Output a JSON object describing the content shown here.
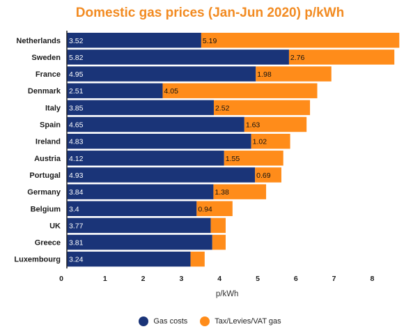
{
  "chart_data": {
    "type": "bar",
    "orientation": "horizontal",
    "stacked": true,
    "title": "Domestic gas prices (Jan-Jun 2020) p/kWh",
    "xlabel": "p/kWh",
    "ylabel": "",
    "xlim": [
      0,
      8.8
    ],
    "xticks": [
      0,
      1,
      2,
      3,
      4,
      5,
      6,
      7,
      8
    ],
    "categories": [
      "Netherlands",
      "Sweden",
      "France",
      "Denmark",
      "Italy",
      "Spain",
      "Ireland",
      "Austria",
      "Portugal",
      "Germany",
      "Belgium",
      "UK",
      "Greece",
      "Luxembourg"
    ],
    "series": [
      {
        "name": "Gas costs",
        "color": "#1a3478",
        "values": [
          3.52,
          5.82,
          4.95,
          2.51,
          3.85,
          4.65,
          4.83,
          4.12,
          4.93,
          3.84,
          3.4,
          3.77,
          3.81,
          3.24
        ],
        "labels": [
          "3.52",
          "5.82",
          "4.95",
          "2.51",
          "3.85",
          "4.65",
          "4.83",
          "4.12",
          "4.93",
          "3.84",
          "3.4",
          "3.77",
          "3.81",
          "3.24"
        ]
      },
      {
        "name": "Tax/Levies/VAT gas",
        "color": "#ff8c1a",
        "values": [
          5.19,
          2.76,
          1.98,
          4.05,
          2.52,
          1.63,
          1.02,
          1.55,
          0.69,
          1.38,
          0.94,
          0.39,
          0.35,
          0.37
        ],
        "labels": [
          "5.19",
          "2.76",
          "1.98",
          "4.05",
          "2.52",
          "1.63",
          "1.02",
          "1.55",
          "0.69",
          "1.38",
          "0.94",
          "",
          "",
          ""
        ]
      }
    ],
    "legend_position": "bottom-center"
  }
}
